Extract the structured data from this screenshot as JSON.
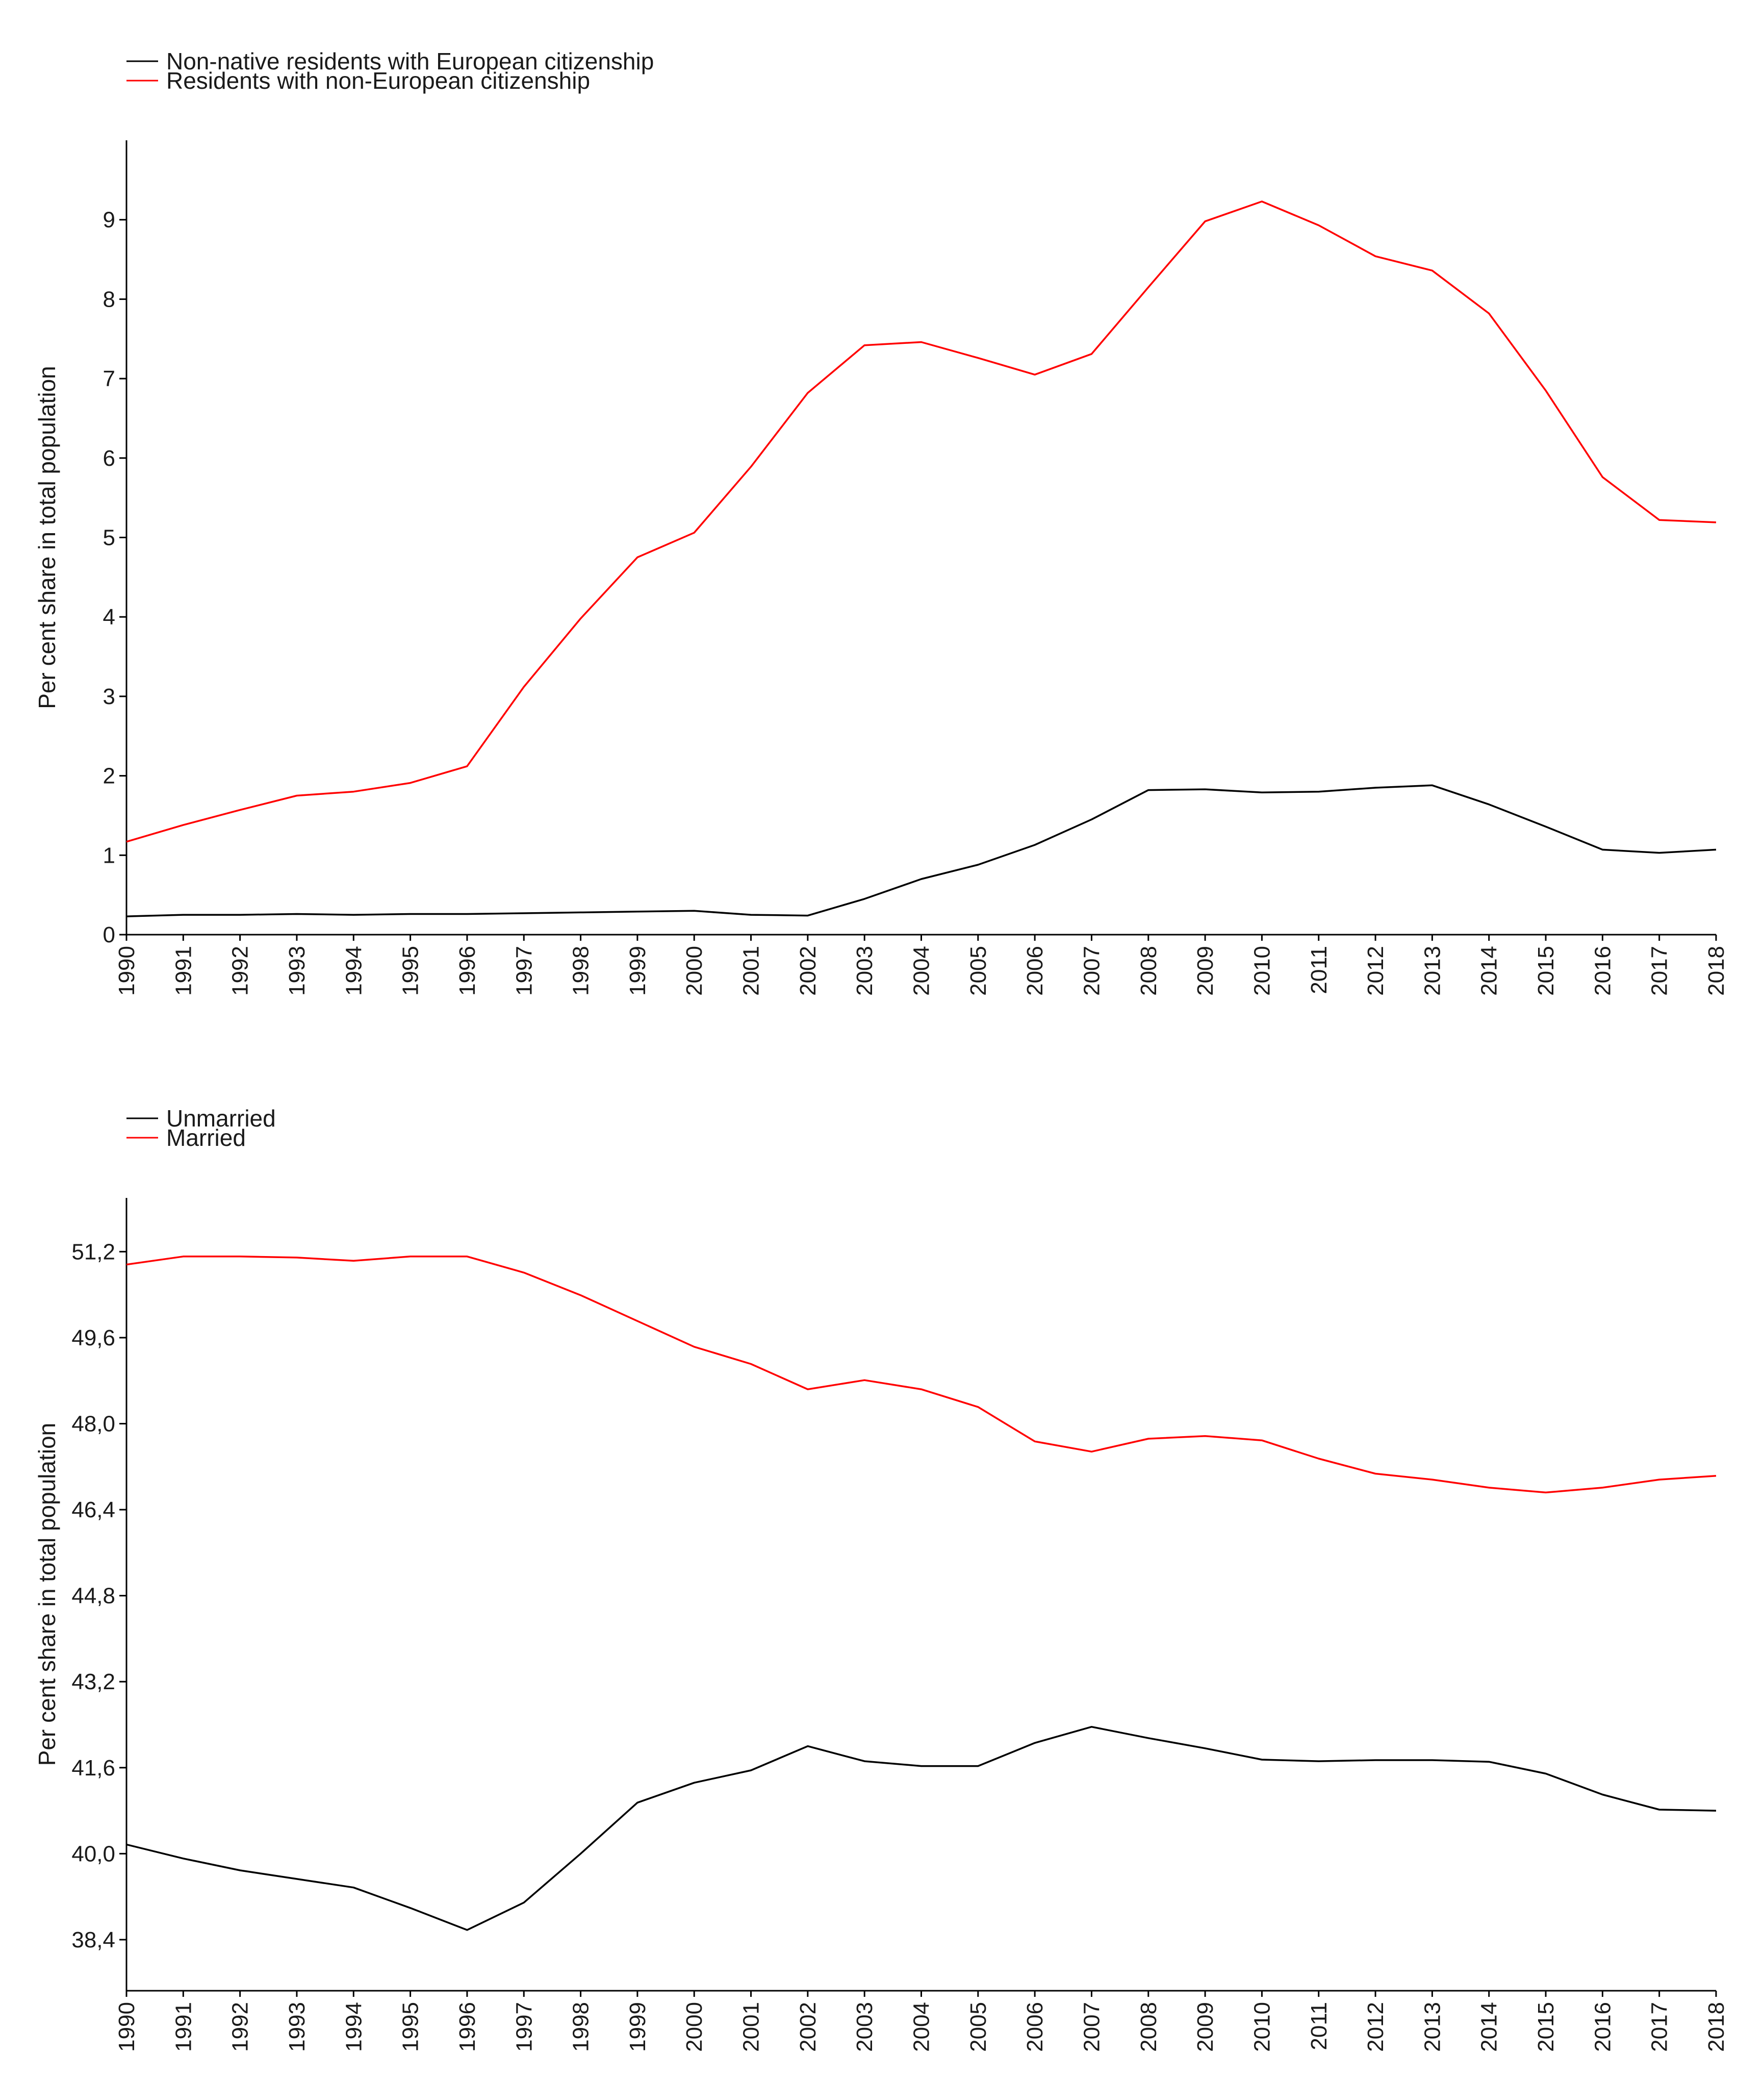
{
  "chart_data": [
    {
      "type": "line",
      "title": "",
      "xlabel": "",
      "ylabel": "Per cent share in total population",
      "categories": [
        "1990",
        "1991",
        "1992",
        "1993",
        "1994",
        "1995",
        "1996",
        "1997",
        "1998",
        "1999",
        "2000",
        "2001",
        "2002",
        "2003",
        "2004",
        "2005",
        "2006",
        "2007",
        "2008",
        "2009",
        "2010",
        "2011",
        "2012",
        "2013",
        "2014",
        "2015",
        "2016",
        "2017",
        "2018"
      ],
      "yticks": [
        0,
        1,
        2,
        3,
        4,
        5,
        6,
        7,
        8,
        9
      ],
      "ytick_labels": [
        "0",
        "1",
        "2",
        "3",
        "4",
        "5",
        "6",
        "7",
        "8",
        "9"
      ],
      "ylim": [
        0,
        10
      ],
      "legend_position": "top-left",
      "series": [
        {
          "name": "Non-native residents with European citizenship",
          "color": "#000000",
          "values": [
            0.23,
            0.25,
            0.25,
            0.26,
            0.25,
            0.26,
            0.26,
            0.27,
            0.28,
            0.29,
            0.3,
            0.25,
            0.24,
            0.45,
            0.7,
            0.88,
            1.13,
            1.45,
            1.82,
            1.83,
            1.79,
            1.8,
            1.85,
            1.88,
            1.64,
            1.36,
            1.07,
            1.03,
            1.07
          ]
        },
        {
          "name": "Residents with non-European citizenship",
          "color": "#ff0000",
          "values": [
            1.17,
            1.38,
            1.57,
            1.75,
            1.8,
            1.91,
            2.12,
            3.12,
            3.98,
            4.75,
            5.06,
            5.89,
            6.82,
            7.42,
            7.46,
            7.26,
            7.05,
            7.31,
            8.15,
            8.98,
            9.23,
            8.93,
            8.54,
            8.36,
            7.82,
            6.85,
            5.76,
            5.22,
            5.19
          ]
        }
      ]
    },
    {
      "type": "line",
      "title": "",
      "xlabel": "",
      "ylabel": "Per cent share in total population",
      "categories": [
        "1990",
        "1991",
        "1992",
        "1993",
        "1994",
        "1995",
        "1996",
        "1997",
        "1998",
        "1999",
        "2000",
        "2001",
        "2002",
        "2003",
        "2004",
        "2005",
        "2006",
        "2007",
        "2008",
        "2009",
        "2010",
        "2011",
        "2012",
        "2013",
        "2014",
        "2015",
        "2016",
        "2017",
        "2018"
      ],
      "yticks": [
        38.4,
        40.0,
        41.6,
        43.2,
        44.8,
        46.4,
        48.0,
        49.6,
        51.2
      ],
      "ytick_labels": [
        "38,4",
        "40,0",
        "41,6",
        "43,2",
        "44,8",
        "46,4",
        "48,0",
        "49,6",
        "51,2"
      ],
      "ylim": [
        37.45,
        52.2
      ],
      "legend_position": "top-left",
      "series": [
        {
          "name": "Unmarried",
          "color": "#000000",
          "values": [
            40.17,
            39.91,
            39.69,
            39.53,
            39.37,
            38.99,
            38.58,
            39.09,
            40.0,
            40.95,
            41.32,
            41.55,
            42.0,
            41.72,
            41.63,
            41.63,
            42.06,
            42.36,
            42.15,
            41.96,
            41.75,
            41.72,
            41.74,
            41.74,
            41.71,
            41.49,
            41.1,
            40.82,
            40.8
          ]
        },
        {
          "name": "Married",
          "color": "#ff0000",
          "values": [
            50.96,
            51.11,
            51.11,
            51.09,
            51.03,
            51.11,
            51.11,
            50.81,
            50.39,
            49.91,
            49.43,
            49.11,
            48.64,
            48.81,
            48.64,
            48.31,
            47.67,
            47.48,
            47.72,
            47.77,
            47.69,
            47.35,
            47.07,
            46.96,
            46.81,
            46.72,
            46.81,
            46.96,
            47.03
          ]
        }
      ]
    }
  ]
}
